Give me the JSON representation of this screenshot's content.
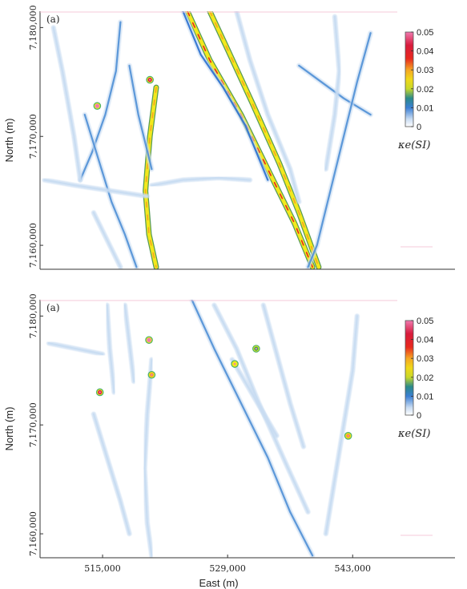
{
  "chart_data": [
    {
      "type": "heatmap",
      "panel_label": "(a)",
      "xlabel": "",
      "ylabel": "North (m)",
      "xlim": [
        508000,
        548000
      ],
      "ylim": [
        7157800,
        7181500
      ],
      "x_ticks": [],
      "y_ticks": [
        {
          "value": 7160000,
          "label": "7,160,000"
        },
        {
          "value": 7170000,
          "label": "7,170,000"
        },
        {
          "value": 7180000,
          "label": "7,180,000"
        }
      ],
      "colorbar": {
        "label": "κe(SI)",
        "range": [
          0,
          0.05
        ],
        "ticks": [
          {
            "value": 0.05,
            "label": "0.05"
          },
          {
            "value": 0.04,
            "label": "0.04"
          },
          {
            "value": 0.03,
            "label": "0.03"
          },
          {
            "value": 0.02,
            "label": "0.02"
          },
          {
            "value": 0.01,
            "label": "0.01"
          },
          {
            "value": 0,
            "label": "0"
          }
        ],
        "colors": [
          "#ffffff",
          "#c8dcf2",
          "#4f8fd6",
          "#2a6fd0",
          "#3aa75a",
          "#f2e81c",
          "#f5a623",
          "#e8281e",
          "#d81b3c",
          "#f07ab0"
        ]
      },
      "features": [
        {
          "kind": "lineament",
          "points": [
            [
              524500,
              7181500
            ],
            [
              527000,
              7177000
            ],
            [
              530500,
              7172000
            ],
            [
              533500,
              7167000
            ],
            [
              536500,
              7162000
            ],
            [
              538500,
              7158000
            ]
          ],
          "value": 0.028
        },
        {
          "kind": "lineament",
          "points": [
            [
              527000,
              7181500
            ],
            [
              529000,
              7178000
            ],
            [
              531800,
              7173000
            ],
            [
              534800,
              7167500
            ],
            [
              537000,
              7163000
            ],
            [
              539200,
              7158000
            ]
          ],
          "value": 0.024
        },
        {
          "kind": "lineament",
          "points": [
            [
              524000,
              7181500
            ],
            [
              526000,
              7177500
            ],
            [
              528500,
              7174500
            ],
            [
              531000,
              7171000
            ],
            [
              533500,
              7166000
            ]
          ],
          "value": 0.014
        },
        {
          "kind": "lineament",
          "points": [
            [
              521000,
              7174500
            ],
            [
              520300,
              7170000
            ],
            [
              519800,
              7165000
            ],
            [
              520200,
              7161000
            ],
            [
              521000,
              7158000
            ]
          ],
          "value": 0.018
        },
        {
          "kind": "lineament",
          "points": [
            [
              517000,
              7180500
            ],
            [
              516500,
              7176000
            ],
            [
              515300,
              7172000
            ],
            [
              513800,
              7168500
            ],
            [
              512500,
              7166000
            ]
          ],
          "value": 0.012
        },
        {
          "kind": "lineament",
          "points": [
            [
              513000,
              7172000
            ],
            [
              514500,
              7168000
            ],
            [
              516000,
              7164000
            ],
            [
              517500,
              7161000
            ],
            [
              518800,
              7158000
            ]
          ],
          "value": 0.012
        },
        {
          "kind": "lineament",
          "points": [
            [
              509500,
              7180000
            ],
            [
              510500,
              7176000
            ],
            [
              511800,
              7170000
            ],
            [
              512500,
              7166000
            ]
          ],
          "value": 0.008
        },
        {
          "kind": "lineament",
          "points": [
            [
              518000,
              7176500
            ],
            [
              519000,
              7172000
            ],
            [
              520500,
              7167000
            ]
          ],
          "value": 0.009
        },
        {
          "kind": "lineament",
          "points": [
            [
              537000,
              7176500
            ],
            [
              539500,
              7175000
            ],
            [
              542000,
              7173500
            ],
            [
              545000,
              7172000
            ]
          ],
          "value": 0.011
        },
        {
          "kind": "lineament",
          "points": [
            [
              545000,
              7179500
            ],
            [
              543500,
              7175000
            ],
            [
              542000,
              7170000
            ],
            [
              540500,
              7165000
            ],
            [
              539000,
              7160000
            ],
            [
              538000,
              7158000
            ]
          ],
          "value": 0.01
        },
        {
          "kind": "lineament",
          "points": [
            [
              530000,
              7181500
            ],
            [
              531500,
              7177000
            ],
            [
              533500,
              7172000
            ],
            [
              536000,
              7167000
            ],
            [
              537000,
              7164000
            ]
          ],
          "value": 0.008
        },
        {
          "kind": "lineament",
          "points": [
            [
              541000,
              7181000
            ],
            [
              541500,
              7176000
            ],
            [
              541000,
              7172000
            ],
            [
              540000,
              7167000
            ]
          ],
          "value": 0.007
        },
        {
          "kind": "lineament",
          "points": [
            [
              508500,
              7166000
            ],
            [
              512000,
              7165500
            ],
            [
              516000,
              7165000
            ],
            [
              520000,
              7164500
            ]
          ],
          "value": 0.006
        },
        {
          "kind": "lineament",
          "points": [
            [
              520500,
              7165500
            ],
            [
              524000,
              7166000
            ],
            [
              528000,
              7166200
            ],
            [
              531500,
              7166000
            ]
          ],
          "value": 0.006
        },
        {
          "kind": "lineament",
          "points": [
            [
              514000,
              7163000
            ],
            [
              515500,
              7160500
            ],
            [
              517000,
              7158000
            ]
          ],
          "value": 0.007
        },
        {
          "kind": "anomaly",
          "x": 514400,
          "y": 7172800,
          "value": 0.05
        },
        {
          "kind": "anomaly",
          "x": 520300,
          "y": 7175200,
          "value": 0.045
        }
      ]
    },
    {
      "type": "heatmap",
      "panel_label": "(a)",
      "xlabel": "East (m)",
      "ylabel": "North (m)",
      "xlim": [
        508000,
        548000
      ],
      "ylim": [
        7157800,
        7181500
      ],
      "x_ticks": [
        {
          "value": 515000,
          "label": "515,000"
        },
        {
          "value": 529000,
          "label": "529,000"
        },
        {
          "value": 543000,
          "label": "543,000"
        }
      ],
      "y_ticks": [
        {
          "value": 7160000,
          "label": "7,160,000"
        },
        {
          "value": 7170000,
          "label": "7,170,000"
        },
        {
          "value": 7180000,
          "label": "7,180,000"
        }
      ],
      "colorbar": {
        "label": "κe(SI)",
        "range": [
          0,
          0.05
        ],
        "ticks": [
          {
            "value": 0.05,
            "label": "0.05"
          },
          {
            "value": 0.04,
            "label": "0.04"
          },
          {
            "value": 0.03,
            "label": "0.03"
          },
          {
            "value": 0.02,
            "label": "0.02"
          },
          {
            "value": 0.01,
            "label": "0.01"
          },
          {
            "value": 0,
            "label": "0"
          }
        ],
        "colors": [
          "#ffffff",
          "#c8dcf2",
          "#4f8fd6",
          "#2a6fd0",
          "#3aa75a",
          "#f2e81c",
          "#f5a623",
          "#e8281e",
          "#d81b3c",
          "#f07ab0"
        ]
      },
      "features": [
        {
          "kind": "lineament",
          "points": [
            [
              525000,
              7181500
            ],
            [
              527500,
              7177000
            ],
            [
              530500,
              7172000
            ],
            [
              533500,
              7167000
            ],
            [
              536000,
              7162000
            ],
            [
              538500,
              7158000
            ]
          ],
          "value": 0.01
        },
        {
          "kind": "lineament",
          "points": [
            [
              527500,
              7181000
            ],
            [
              530000,
              7177000
            ],
            [
              532500,
              7172000
            ],
            [
              535500,
              7166500
            ],
            [
              538000,
              7162000
            ]
          ],
          "value": 0.007
        },
        {
          "kind": "lineament",
          "points": [
            [
              520500,
              7176000
            ],
            [
              520000,
              7171000
            ],
            [
              519700,
              7166000
            ],
            [
              520000,
              7161000
            ],
            [
              520500,
              7158000
            ]
          ],
          "value": 0.006
        },
        {
          "kind": "lineament",
          "points": [
            [
              514000,
              7171000
            ],
            [
              515500,
              7167000
            ],
            [
              517000,
              7163000
            ],
            [
              518000,
              7160000
            ]
          ],
          "value": 0.005
        },
        {
          "kind": "lineament",
          "points": [
            [
              515500,
              7181000
            ],
            [
              515800,
              7177000
            ],
            [
              516300,
              7173000
            ]
          ],
          "value": 0.006
        },
        {
          "kind": "lineament",
          "points": [
            [
              517500,
              7181000
            ],
            [
              518000,
              7177500
            ],
            [
              518500,
              7174000
            ]
          ],
          "value": 0.005
        },
        {
          "kind": "lineament",
          "points": [
            [
              533000,
              7181000
            ],
            [
              534500,
              7176500
            ],
            [
              536000,
              7172000
            ],
            [
              537500,
              7168000
            ]
          ],
          "value": 0.004
        },
        {
          "kind": "lineament",
          "points": [
            [
              543500,
              7180000
            ],
            [
              543000,
              7175000
            ],
            [
              542000,
              7170000
            ],
            [
              541000,
              7165000
            ],
            [
              540000,
              7160000
            ]
          ],
          "value": 0.004
        },
        {
          "kind": "lineament",
          "points": [
            [
              509000,
              7177500
            ],
            [
              512000,
              7177000
            ],
            [
              515000,
              7176500
            ]
          ],
          "value": 0.004
        },
        {
          "kind": "lineament",
          "points": [
            [
              529500,
              7176000
            ],
            [
              532000,
              7172500
            ],
            [
              534500,
              7169000
            ]
          ],
          "value": 0.004
        },
        {
          "kind": "anomaly",
          "x": 514700,
          "y": 7173000,
          "value": 0.045
        },
        {
          "kind": "anomaly",
          "x": 520200,
          "y": 7177800,
          "value": 0.05
        },
        {
          "kind": "anomaly",
          "x": 520500,
          "y": 7174600,
          "value": 0.035
        },
        {
          "kind": "anomaly",
          "x": 529800,
          "y": 7175600,
          "value": 0.025
        },
        {
          "kind": "anomaly",
          "x": 532200,
          "y": 7177000,
          "value": 0.022
        },
        {
          "kind": "anomaly",
          "x": 542500,
          "y": 7169000,
          "value": 0.035
        }
      ]
    }
  ]
}
